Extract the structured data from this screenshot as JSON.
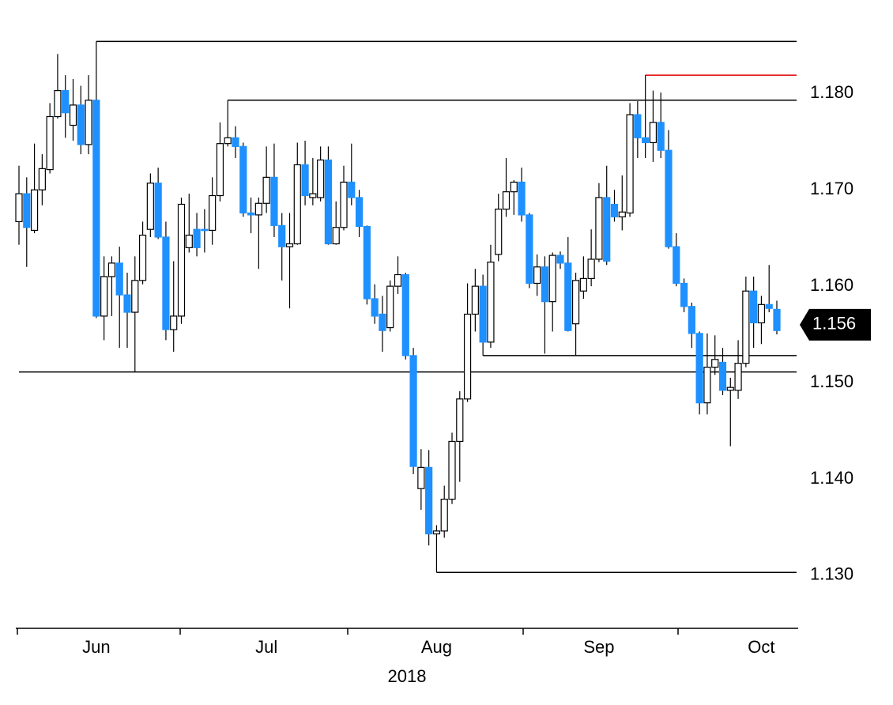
{
  "chart_data": {
    "type": "candlestick",
    "x_label": "2018",
    "categories": [
      null,
      null,
      null,
      null,
      null,
      null,
      null,
      null,
      null,
      null,
      "Jun",
      null,
      null,
      null,
      null,
      null,
      null,
      null,
      null,
      null,
      null,
      null,
      null,
      null,
      null,
      null,
      null,
      null,
      null,
      null,
      null,
      null,
      "Jul",
      null,
      null,
      null,
      null,
      null,
      null,
      null,
      null,
      null,
      null,
      null,
      null,
      null,
      null,
      null,
      null,
      null,
      null,
      null,
      null,
      null,
      "Aug",
      null,
      null,
      null,
      null,
      null,
      null,
      null,
      null,
      null,
      null,
      null,
      null,
      null,
      null,
      null,
      null,
      null,
      null,
      null,
      null,
      "Sep",
      null,
      null,
      null,
      null,
      null,
      null,
      null,
      null,
      null,
      null,
      null,
      null,
      null,
      null,
      null,
      null,
      null,
      null,
      null,
      null,
      "Oct",
      null,
      null
    ],
    "open": [
      1.1667,
      1.1696,
      1.1658,
      1.17,
      1.1721,
      1.1776,
      1.1803,
      1.1767,
      1.1788,
      1.1747,
      1.1793,
      1.1569,
      1.161,
      1.1624,
      1.1591,
      1.1573,
      1.1606,
      1.1659,
      1.1707,
      1.1651,
      1.1555,
      1.1569,
      1.164,
      1.1659,
      1.1659,
      1.1658,
      1.1694,
      1.1748,
      1.1754,
      1.1745,
      1.1676,
      1.1674,
      1.1686,
      1.1713,
      1.1663,
      1.1641,
      1.1644,
      1.1726,
      1.1692,
      1.1692,
      1.1731,
      1.1644,
      1.1661,
      1.1708,
      1.1692,
      1.1662,
      1.1587,
      1.1571,
      1.1557,
      1.16,
      1.1612,
      1.1528,
      1.139,
      1.1412,
      1.1343,
      1.1346,
      1.1379,
      1.1439,
      1.1483,
      1.1571,
      1.16,
      1.1542,
      1.1633,
      1.168,
      1.1698,
      1.1708,
      1.1674,
      1.1603,
      1.162,
      1.1584,
      1.1632,
      1.1624,
      1.1561,
      1.1595,
      1.1608,
      1.1628,
      1.1692,
      1.1685,
      1.1672,
      1.1676,
      1.1778,
      1.1754,
      1.1749,
      1.177,
      1.1741,
      1.1641,
      1.1603,
      1.1579,
      1.1551,
      1.1479,
      1.1516,
      1.1521,
      1.1492,
      1.1492,
      1.152,
      1.1595,
      1.1562,
      1.1581,
      1.1576
    ],
    "high": [
      1.1725,
      1.1713,
      1.1748,
      1.1737,
      1.179,
      1.1841,
      1.1819,
      1.1815,
      1.1808,
      1.1819,
      1.1854,
      1.1631,
      1.1631,
      1.1641,
      1.1614,
      1.1631,
      1.1667,
      1.1717,
      1.1723,
      1.1667,
      1.1626,
      1.1692,
      1.1696,
      1.1676,
      1.168,
      1.1713,
      1.177,
      1.1793,
      1.1766,
      1.1749,
      1.1692,
      1.1692,
      1.1745,
      1.1748,
      1.1676,
      1.1676,
      1.1749,
      1.1751,
      1.1733,
      1.1745,
      1.1745,
      1.1688,
      1.1725,
      1.1748,
      1.17,
      1.1663,
      1.1602,
      1.159,
      1.1606,
      1.1631,
      1.1614,
      1.1536,
      1.1431,
      1.143,
      1.1352,
      1.1393,
      1.1448,
      1.1491,
      1.1603,
      1.1618,
      1.1612,
      1.1643,
      1.1696,
      1.1733,
      1.171,
      1.1723,
      1.1676,
      1.1633,
      1.1631,
      1.1635,
      1.1636,
      1.1651,
      1.1614,
      1.1631,
      1.1659,
      1.1707,
      1.1725,
      1.17,
      1.1715,
      1.179,
      1.1792,
      1.1819,
      1.1803,
      1.1801,
      1.1762,
      1.1655,
      1.1608,
      1.1583,
      1.1553,
      1.1551,
      1.1549,
      1.1536,
      1.1505,
      1.1544,
      1.161,
      1.161,
      1.159,
      1.1622,
      1.1585
    ],
    "low": [
      1.1643,
      1.162,
      1.1655,
      1.1684,
      1.1717,
      1.1774,
      1.1754,
      1.1751,
      1.1737,
      1.1737,
      1.1567,
      1.1544,
      1.1569,
      1.1536,
      1.1536,
      1.1511,
      1.1602,
      1.1651,
      1.1649,
      1.1544,
      1.1532,
      1.1561,
      1.1635,
      1.1631,
      1.1635,
      1.1643,
      1.1688,
      1.1745,
      1.1733,
      1.1672,
      1.1655,
      1.1618,
      1.1676,
      1.1651,
      1.1606,
      1.1577,
      1.1643,
      1.1684,
      1.1684,
      1.1688,
      1.1643,
      1.1643,
      1.1658,
      1.1684,
      1.1651,
      1.1581,
      1.1561,
      1.1532,
      1.1553,
      1.1592,
      1.1524,
      1.1405,
      1.1368,
      1.1331,
      1.1303,
      1.1339,
      1.1374,
      1.1397,
      1.148,
      1.1553,
      1.1528,
      1.1536,
      1.1626,
      1.1672,
      1.1674,
      1.1667,
      1.1598,
      1.159,
      1.153,
      1.1553,
      1.1618,
      1.1553,
      1.1528,
      1.1587,
      1.16,
      1.1625,
      1.1622,
      1.1667,
      1.1658,
      1.1672,
      1.1733,
      1.1733,
      1.1729,
      1.1733,
      1.1639,
      1.16,
      1.1573,
      1.1536,
      1.1467,
      1.1467,
      1.1508,
      1.1487,
      1.1434,
      1.1483,
      1.1516,
      1.1536,
      1.154,
      1.1573,
      1.155
    ],
    "close": [
      1.1696,
      1.1661,
      1.17,
      1.1722,
      1.1776,
      1.1803,
      1.178,
      1.1788,
      1.1747,
      1.1793,
      1.1569,
      1.161,
      1.1624,
      1.1591,
      1.1573,
      1.1606,
      1.1653,
      1.1707,
      1.1651,
      1.1555,
      1.1569,
      1.1685,
      1.1653,
      1.164,
      1.1658,
      1.1694,
      1.1748,
      1.1754,
      1.1745,
      1.1676,
      1.1674,
      1.1686,
      1.1713,
      1.1663,
      1.1641,
      1.1644,
      1.1726,
      1.1694,
      1.1696,
      1.1731,
      1.1644,
      1.1661,
      1.1708,
      1.1692,
      1.1662,
      1.1587,
      1.1569,
      1.1554,
      1.16,
      1.1612,
      1.1528,
      1.1413,
      1.1412,
      1.1343,
      1.1346,
      1.1379,
      1.1439,
      1.1483,
      1.1571,
      1.16,
      1.1542,
      1.1625,
      1.168,
      1.1698,
      1.1708,
      1.1674,
      1.1603,
      1.162,
      1.1584,
      1.1632,
      1.1624,
      1.1554,
      1.1606,
      1.1608,
      1.1628,
      1.1692,
      1.1626,
      1.1672,
      1.1677,
      1.1778,
      1.1754,
      1.1749,
      1.177,
      1.1741,
      1.1641,
      1.1603,
      1.1579,
      1.1551,
      1.1479,
      1.1516,
      1.1524,
      1.1492,
      1.1495,
      1.152,
      1.1595,
      1.1562,
      1.1581,
      1.1577,
      1.1554
    ],
    "up_color": "#ffffff",
    "down_color": "#1e90ff",
    "levels": [
      {
        "value": 1.1854,
        "start_index": 10,
        "color": "#000000"
      },
      {
        "value": 1.1819,
        "start_index": 81,
        "color": "#e00000"
      },
      {
        "value": 1.1793,
        "start_index": 27,
        "color": "#000000"
      },
      {
        "value": 1.1528,
        "start_index": 60,
        "color": "#000000"
      },
      {
        "value": 1.1511,
        "start_index": 0,
        "color": "#000000"
      },
      {
        "value": 1.1303,
        "start_index": 54,
        "color": "#000000"
      }
    ],
    "last_price": 1.156,
    "ylim": [
      1.1245,
      1.1897
    ],
    "yticks": [
      {
        "value": 1.13,
        "label": "1.130"
      },
      {
        "value": 1.14,
        "label": "1.140"
      },
      {
        "value": 1.15,
        "label": "1.150"
      },
      {
        "value": 1.16,
        "label": "1.160"
      },
      {
        "value": 1.17,
        "label": "1.170"
      },
      {
        "value": 1.18,
        "label": "1.180"
      }
    ]
  }
}
